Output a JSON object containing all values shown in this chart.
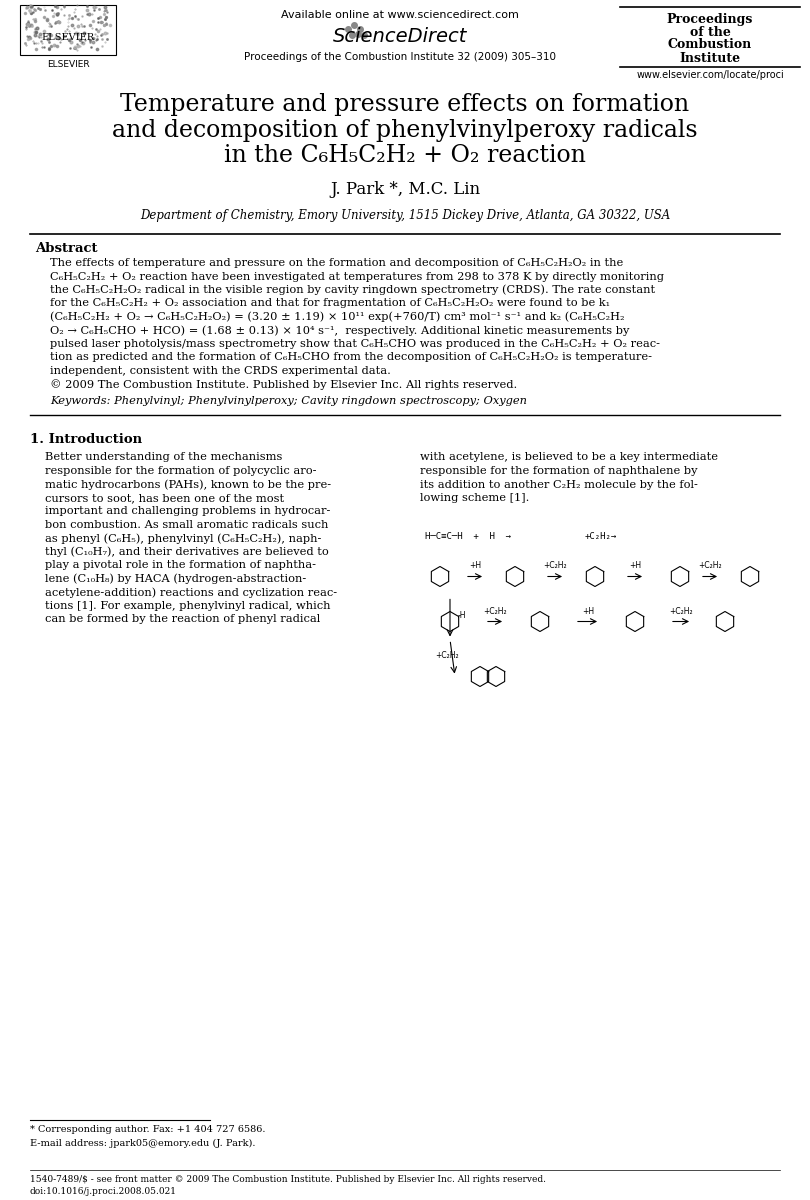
{
  "bg_color": "#ffffff",
  "title_line1": "Temperature and pressure effects on formation",
  "title_line2": "and decomposition of phenylvinylperoxy radicals",
  "title_line3": "in the C₆H₅C₂H₂ + O₂ reaction",
  "authors": "J. Park *, M.C. Lin",
  "affiliation": "Department of Chemistry, Emory University, 1515 Dickey Drive, Atlanta, GA 30322, USA",
  "header_available": "Available online at www.sciencedirect.com",
  "header_journal": "Proceedings of the Combustion Institute 32 (2009) 305–310",
  "header_box_line1": "Proceedings",
  "header_box_line2": "of the",
  "header_box_line3": "Combustion",
  "header_box_line4": "Institute",
  "header_url": "www.elsevier.com/locate/proci",
  "abstract_label": "Abstract",
  "abstract_text": "The effects of temperature and pressure on the formation and decomposition of C₆H₅C₂H₂O₂ in the C₆H₅C₂H₂ + O₂ reaction have been investigated at temperatures from 298 to 378 K by directly monitoring the C₆H₅C₂H₂O₂ radical in the visible region by cavity ringdown spectrometry (CRDS). The rate constant for the C₆H₅C₂H₂ + O₂ association and that for fragmentation of C₆H₅C₂H₂O₂ were found to be k₁ (C₆H₅C₂H₂ + O₂ → C₆H₅C₂H₂O₂) = (3.20 ± 1.19) × 10¹¹ exp(+760/T) cm³ mol⁻¹ s⁻¹ and k₂ (C₆H₅C₂H₂O₂ → C₆H₅CHO + HCO) = (1.68 ± 0.13) × 10⁴ s⁻¹, respectively. Additional kinetic measurements by pulsed laser photolysis/mass spectrometry show that C₆H₅CHO was produced in the C₆H₅C₂H₂ + O₂ reaction as predicted and the formation of C₆H₅CHO from the decomposition of C₆H₅C₂H₂O₂ is temperature-independent, consistent with the CRDS experimental data.",
  "copyright_text": "© 2009 The Combustion Institute. Published by Elsevier Inc. All rights reserved.",
  "keywords_text": "Keywords: Phenylvinyl; Phenylvinylperoxy; Cavity ringdown spectroscopy; Oxygen",
  "section1_title": "1. Introduction",
  "intro_col1": "Better understanding of the mechanisms responsible for the formation of polycyclic aromatic hydrocarbons (PAHs), known to be the precursors to soot, has been one of the most important and challenging problems in hydrocarbon combustion. As small aromatic radicals such as phenyl (C₆H₅), phenylvinyl (C₆H₅C₂H₂), naphtyl (C₁₀H₇), and their derivatives are believed to play a pivotal role in the formation of naphthalene (C₁₀H₈) by HACA (hydrogen-abstraction-acetylene-addition) reactions and cyclization reactions [1]. For example, phenylvinyl radical, which can be formed by the reaction of phenyl radical",
  "intro_col2": "with acetylene, is believed to be a key intermediate responsible for the formation of naphthalene by its addition to another C₂H₂ molecule by the following scheme [1].",
  "footnote_star": "* Corresponding author. Fax: +1 404 727 6586.",
  "footnote_email": "E-mail address: jpark05@emory.edu (J. Park).",
  "footer_issn": "1540-7489/$ - see front matter © 2009 The Combustion Institute. Published by Elsevier Inc. All rights reserved.",
  "footer_doi": "doi:10.1016/j.proci.2008.05.021"
}
